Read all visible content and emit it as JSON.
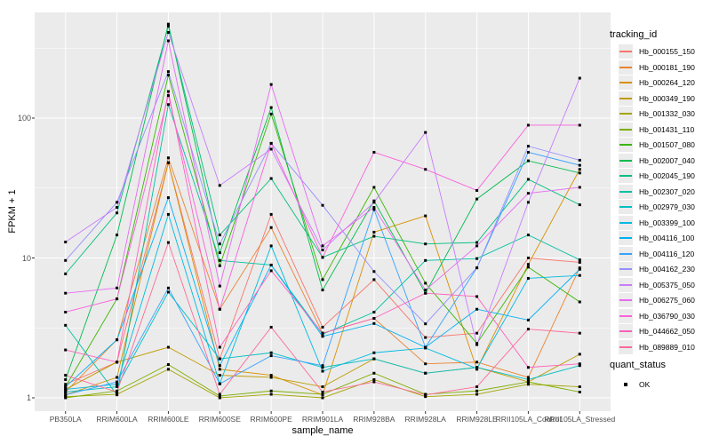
{
  "chart_data": {
    "type": "line",
    "title": "",
    "xlabel": "sample_name",
    "ylabel": "FPKM + 1",
    "y_scale": "log10",
    "ylim": [
      1,
      570
    ],
    "y_ticks": [
      1,
      10,
      100
    ],
    "grid": "on",
    "panel_bg": "#EBEBEB",
    "grid_color": "#FFFFFF",
    "point_marker": "black-square",
    "legend_position": "right",
    "categories": [
      "PB350LA",
      "RRIM600LA",
      "RRIM600LE",
      "RRIM600SE",
      "RRIM600PE",
      "RRIM901LA",
      "RRIM928BA",
      "RRIM928LA",
      "RRIM928LE",
      "RRII105LA_Control",
      "RRII105LA_Stressed"
    ],
    "series": [
      {
        "name": "Hb_000155_150",
        "color": "#F8766D",
        "values": [
          1.25,
          1.8,
          48,
          1.9,
          20.5,
          3.2,
          7,
          2.7,
          2.9,
          10,
          9.3
        ]
      },
      {
        "name": "Hb_000181_190",
        "color": "#EA8331",
        "values": [
          1.1,
          2.6,
          52,
          4.3,
          16.5,
          2.9,
          3.7,
          1.75,
          1.8,
          1.4,
          8.5
        ]
      },
      {
        "name": "Hb_000264_120",
        "color": "#D89000",
        "values": [
          1.05,
          1.4,
          48,
          1.6,
          1.45,
          1.05,
          15.3,
          20,
          1.6,
          9,
          43
        ]
      },
      {
        "name": "Hb_000349_190",
        "color": "#C09B00",
        "values": [
          1.15,
          1.8,
          2.3,
          1.45,
          1.4,
          1.2,
          1.9,
          1.5,
          1.65,
          1.3,
          2.05
        ]
      },
      {
        "name": "Hb_001332_030",
        "color": "#A3A500",
        "values": [
          1.02,
          1.06,
          1.6,
          1.0,
          1.06,
          1.0,
          1.35,
          1.02,
          1.06,
          1.25,
          1.2
        ]
      },
      {
        "name": "Hb_001431_110",
        "color": "#7CAE00",
        "values": [
          1.0,
          1.12,
          1.73,
          1.03,
          1.12,
          1.06,
          1.5,
          1.06,
          1.12,
          1.3,
          1.1
        ]
      },
      {
        "name": "Hb_001507_080",
        "color": "#39B600",
        "values": [
          1.2,
          5.1,
          203,
          8.8,
          107,
          7,
          32,
          6.6,
          2.45,
          8.6,
          4.85
        ]
      },
      {
        "name": "Hb_002007_040",
        "color": "#00BB4E",
        "values": [
          1.35,
          14.6,
          470,
          10.9,
          119,
          5.9,
          25.6,
          5.6,
          26.4,
          49.5,
          40.5
        ]
      },
      {
        "name": "Hb_002045_190",
        "color": "#00BF7D",
        "values": [
          7.7,
          21,
          455,
          14.6,
          37,
          10.1,
          14.3,
          12.6,
          12.9,
          36.5,
          24
        ]
      },
      {
        "name": "Hb_002307_020",
        "color": "#00C1A3",
        "values": [
          3.3,
          1.05,
          125,
          9.6,
          8.9,
          2.85,
          4.1,
          9.6,
          9.9,
          14.6,
          9.7
        ]
      },
      {
        "name": "Hb_002979_030",
        "color": "#00BFC4",
        "values": [
          1.1,
          1.2,
          5.7,
          1.9,
          2.1,
          1.65,
          1.9,
          1.5,
          1.65,
          1.35,
          1.7
        ]
      },
      {
        "name": "Hb_003399_100",
        "color": "#00BAE0",
        "values": [
          1.15,
          1.25,
          20.5,
          1.26,
          12.2,
          1.55,
          2.1,
          2.27,
          1.62,
          7.15,
          7.5
        ]
      },
      {
        "name": "Hb_004116_100",
        "color": "#00B0F6",
        "values": [
          1.2,
          2.6,
          27,
          1.7,
          8.9,
          2.75,
          3.4,
          2.3,
          4.3,
          3.6,
          8.3
        ]
      },
      {
        "name": "Hb_004116_120",
        "color": "#35A2FF",
        "values": [
          1.05,
          1.3,
          6.1,
          1.26,
          2.0,
          1.7,
          22.2,
          2.3,
          8.5,
          57,
          46
        ]
      },
      {
        "name": "Hb_004162_230",
        "color": "#9590FF",
        "values": [
          9.6,
          25,
          215,
          12.6,
          66,
          23.8,
          8.0,
          3.38,
          8.5,
          63,
          50
        ]
      },
      {
        "name": "Hb_005375_050",
        "color": "#C77CFF",
        "values": [
          13,
          23,
          410,
          33,
          60,
          11.4,
          25,
          79,
          2.4,
          25,
          193
        ]
      },
      {
        "name": "Hb_006275_060",
        "color": "#E76BF3",
        "values": [
          5.6,
          6.1,
          357,
          6.3,
          174,
          12.2,
          23,
          5.9,
          12.2,
          29,
          32
        ]
      },
      {
        "name": "Hb_036790_030",
        "color": "#FA62DB",
        "values": [
          4.1,
          5.1,
          145,
          4.3,
          66,
          10.1,
          57,
          43,
          30.4,
          89,
          89
        ]
      },
      {
        "name": "Hb_044662_050",
        "color": "#FF62BC",
        "values": [
          2.2,
          1.8,
          155,
          2.3,
          8.1,
          2.9,
          3.7,
          5.6,
          5.3,
          1.65,
          1.75
        ]
      },
      {
        "name": "Hb_089889_010",
        "color": "#FF6A98",
        "values": [
          1.45,
          1.1,
          12.9,
          1.06,
          3.2,
          1.1,
          1.3,
          1.05,
          1.2,
          3.1,
          2.9
        ]
      }
    ],
    "legend": {
      "series_legend_title": "tracking_id",
      "status_legend_title": "quant_status",
      "status_items": [
        {
          "label": "OK",
          "marker": "black-square",
          "color": "#000000"
        }
      ]
    }
  }
}
